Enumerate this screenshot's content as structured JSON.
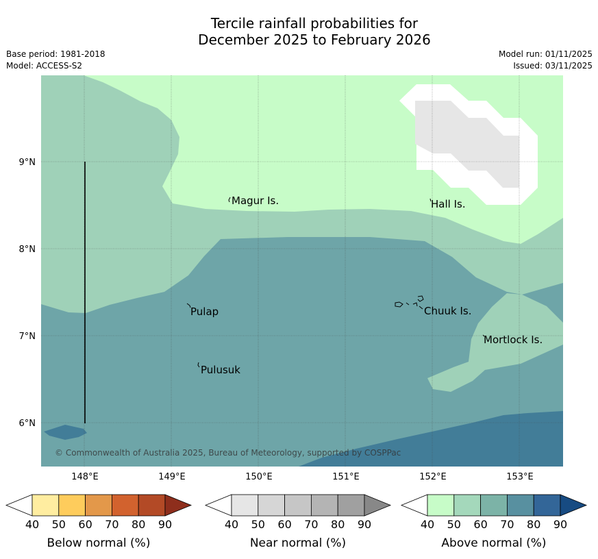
{
  "title": {
    "line1": "Tercile rainfall probabilities for",
    "line2": "December 2025 to February 2026"
  },
  "meta": {
    "base_period": "Base period: 1981-2018",
    "model": "Model: ACCESS-S2",
    "model_run": "Model run: 01/11/2025",
    "issued": "Issued: 03/11/2025"
  },
  "axes": {
    "lat_labels": [
      "9°N",
      "8°N",
      "7°N",
      "6°N"
    ],
    "lon_labels": [
      "148°E",
      "149°E",
      "150°E",
      "151°E",
      "152°E",
      "153°E"
    ]
  },
  "places": {
    "magur": "Magur Is.",
    "hall": "Hall Is.",
    "pulap": "Pulap",
    "chuuk": "Chuuk Is.",
    "mortlock": "Mortlock Is.",
    "pulusuk": "Pulusuk"
  },
  "copyright": "© Commonwealth of Australia 2025, Bureau of Meteorology, supported by COSPPac",
  "colorbars": {
    "ticks": [
      "40",
      "50",
      "60",
      "70",
      "80",
      "90"
    ],
    "below": {
      "title": "Below normal (%)",
      "colors": [
        "#ffffff",
        "#ffeda0",
        "#fecc5c",
        "#e3984a",
        "#d2622e",
        "#b34a26",
        "#8e2e1c"
      ]
    },
    "near": {
      "title": "Near normal (%)",
      "colors": [
        "#ffffff",
        "#e6e6e6",
        "#d6d6d6",
        "#c6c6c6",
        "#b4b4b4",
        "#a0a0a0",
        "#888888"
      ]
    },
    "above": {
      "title": "Above normal (%)",
      "colors": [
        "#ffffff",
        "#c7fcc8",
        "#a4d8bb",
        "#7cb3a7",
        "#5890a0",
        "#336698",
        "#174b82"
      ]
    }
  },
  "map_colors": {
    "c40_50": "#c7fcc8",
    "c50_60": "#9fd1b8",
    "c60_70": "#6ea5a8",
    "c70_80": "#427d98",
    "near_40_50": "#ffffff",
    "near_50_60": "#e6e6e6"
  }
}
